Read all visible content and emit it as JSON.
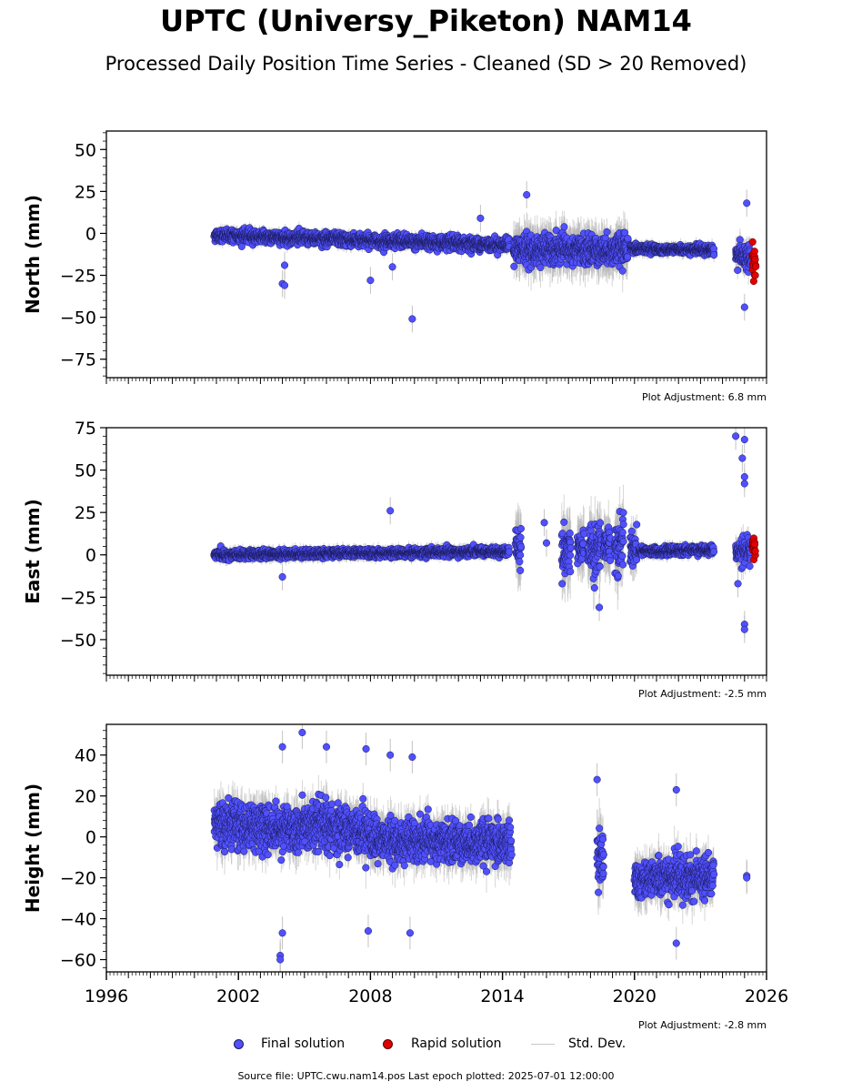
{
  "title": "UPTC (Universy_Piketon) NAM14",
  "subtitle": "Processed Daily Position Time Series - Cleaned (SD > 20 Removed)",
  "legend": {
    "final": "Final solution",
    "rapid": "Rapid solution",
    "std": "Std. Dev."
  },
  "footer": "Source file: UPTC.cwu.nam14.pos  Last epoch plotted: 2025-07-01 12:00:00",
  "colors": {
    "final": "#5050ff",
    "rapid": "#e00000",
    "std": "#b4b4b4",
    "edge": "#1a1a5a"
  },
  "chart_data": [
    {
      "type": "scatter",
      "ylabel": "North (mm)",
      "xlim": [
        1996,
        2026
      ],
      "ylim": [
        -86,
        61
      ],
      "yticks": [
        50,
        25,
        0,
        -25,
        -50,
        -75
      ],
      "adjustment": "Plot Adjustment: 6.8 mm",
      "segments": [
        {
          "series": "final",
          "start": 2000.9,
          "end": 2014.3,
          "mean_start": -1,
          "mean_end": -7,
          "spread": 3,
          "err": 3
        },
        {
          "series": "final",
          "start": 2014.5,
          "end": 2019.7,
          "mean_start": -10,
          "mean_end": -10,
          "spread": 7,
          "err": 10
        },
        {
          "series": "final",
          "start": 2019.8,
          "end": 2023.6,
          "mean_start": -9,
          "mean_end": -10,
          "spread": 2,
          "err": 3
        },
        {
          "series": "final",
          "start": 2024.6,
          "end": 2025.3,
          "mean_start": -13,
          "mean_end": -15,
          "spread": 6,
          "err": 6
        },
        {
          "series": "rapid",
          "start": 2025.35,
          "end": 2025.5,
          "mean_start": -15,
          "mean_end": -20,
          "spread": 6,
          "err": 0
        }
      ],
      "outliers": [
        {
          "x": 2004.0,
          "y": -30
        },
        {
          "x": 2004.1,
          "y": -31
        },
        {
          "x": 2004.1,
          "y": -19
        },
        {
          "x": 2009.9,
          "y": -51
        },
        {
          "x": 2008.0,
          "y": -28
        },
        {
          "x": 2009.0,
          "y": -20
        },
        {
          "x": 2013.0,
          "y": 9
        },
        {
          "x": 2015.1,
          "y": 23
        },
        {
          "x": 2025.0,
          "y": -44
        },
        {
          "x": 2025.1,
          "y": 18
        }
      ]
    },
    {
      "type": "scatter",
      "ylabel": "East (mm)",
      "xlim": [
        1996,
        2026
      ],
      "ylim": [
        -71,
        75
      ],
      "yticks": [
        75,
        50,
        25,
        0,
        -25,
        -50
      ],
      "adjustment": "Plot Adjustment: -2.5 mm",
      "segments": [
        {
          "series": "final",
          "start": 2000.9,
          "end": 2014.3,
          "mean_start": 0,
          "mean_end": 2,
          "spread": 2,
          "err": 3
        },
        {
          "series": "final",
          "start": 2014.6,
          "end": 2014.85,
          "mean_start": 5,
          "mean_end": 5,
          "spread": 12,
          "err": 15
        },
        {
          "series": "final",
          "start": 2016.7,
          "end": 2017.1,
          "mean_start": 3,
          "mean_end": 3,
          "spread": 11,
          "err": 14
        },
        {
          "series": "final",
          "start": 2017.4,
          "end": 2017.7,
          "mean_start": 5,
          "mean_end": 5,
          "spread": 9,
          "err": 12
        },
        {
          "series": "final",
          "start": 2017.9,
          "end": 2018.5,
          "mean_start": 3,
          "mean_end": 3,
          "spread": 12,
          "err": 14
        },
        {
          "series": "final",
          "start": 2018.6,
          "end": 2018.9,
          "mean_start": 5,
          "mean_end": 5,
          "spread": 10,
          "err": 12
        },
        {
          "series": "final",
          "start": 2019.1,
          "end": 2019.5,
          "mean_start": 6,
          "mean_end": 6,
          "spread": 12,
          "err": 14
        },
        {
          "series": "final",
          "start": 2019.8,
          "end": 2020.1,
          "mean_start": 2,
          "mean_end": 2,
          "spread": 8,
          "err": 10
        },
        {
          "series": "final",
          "start": 2020.2,
          "end": 2023.6,
          "mean_start": 2,
          "mean_end": 3,
          "spread": 2,
          "err": 3
        },
        {
          "series": "final",
          "start": 2024.6,
          "end": 2025.3,
          "mean_start": 2,
          "mean_end": 2,
          "spread": 6,
          "err": 6
        },
        {
          "series": "rapid",
          "start": 2025.35,
          "end": 2025.5,
          "mean_start": 4,
          "mean_end": 4,
          "spread": 5,
          "err": 0
        }
      ],
      "outliers": [
        {
          "x": 2004.0,
          "y": -13
        },
        {
          "x": 2008.9,
          "y": 26
        },
        {
          "x": 2015.9,
          "y": 19
        },
        {
          "x": 2016.0,
          "y": 7
        },
        {
          "x": 2018.4,
          "y": -31
        },
        {
          "x": 2024.6,
          "y": 70
        },
        {
          "x": 2024.9,
          "y": 57
        },
        {
          "x": 2025.0,
          "y": 68
        },
        {
          "x": 2025.0,
          "y": 46
        },
        {
          "x": 2025.0,
          "y": 42
        },
        {
          "x": 2025.0,
          "y": -41
        },
        {
          "x": 2025.0,
          "y": -44
        },
        {
          "x": 2024.7,
          "y": -17
        }
      ]
    },
    {
      "type": "scatter",
      "ylabel": "Height (mm)",
      "xlim": [
        1996,
        2026
      ],
      "ylim": [
        -66,
        55
      ],
      "yticks": [
        40,
        20,
        0,
        -20,
        -40,
        -60
      ],
      "xticks": [
        "1996",
        "2002",
        "2008",
        "2014",
        "2020",
        "2026"
      ],
      "adjustment": "Plot Adjustment: -2.8 mm",
      "segments": [
        {
          "series": "final",
          "start": 2000.9,
          "end": 2005.0,
          "mean_start": 6,
          "mean_end": 4,
          "spread": 9,
          "err": 8
        },
        {
          "series": "final",
          "start": 2005.0,
          "end": 2008.0,
          "mean_start": 6,
          "mean_end": 3,
          "spread": 9,
          "err": 8
        },
        {
          "series": "final",
          "start": 2008.0,
          "end": 2014.4,
          "mean_start": -2,
          "mean_end": -3,
          "spread": 8,
          "err": 8
        },
        {
          "series": "final",
          "start": 2018.3,
          "end": 2018.6,
          "mean_start": -10,
          "mean_end": -10,
          "spread": 10,
          "err": 12
        },
        {
          "series": "final",
          "start": 2020.0,
          "end": 2023.6,
          "mean_start": -20,
          "mean_end": -20,
          "spread": 8,
          "err": 8
        }
      ],
      "outliers": [
        {
          "x": 2003.9,
          "y": -58
        },
        {
          "x": 2003.9,
          "y": -60
        },
        {
          "x": 2004.0,
          "y": -47
        },
        {
          "x": 2004.0,
          "y": 44
        },
        {
          "x": 2004.9,
          "y": 51
        },
        {
          "x": 2006.0,
          "y": 44
        },
        {
          "x": 2007.8,
          "y": 43
        },
        {
          "x": 2007.9,
          "y": -46
        },
        {
          "x": 2009.8,
          "y": -47
        },
        {
          "x": 2009.9,
          "y": 39
        },
        {
          "x": 2008.9,
          "y": 40
        },
        {
          "x": 2018.3,
          "y": 28
        },
        {
          "x": 2021.9,
          "y": 23
        },
        {
          "x": 2021.9,
          "y": -52
        },
        {
          "x": 2025.1,
          "y": -19
        },
        {
          "x": 2025.1,
          "y": -20
        }
      ]
    }
  ]
}
